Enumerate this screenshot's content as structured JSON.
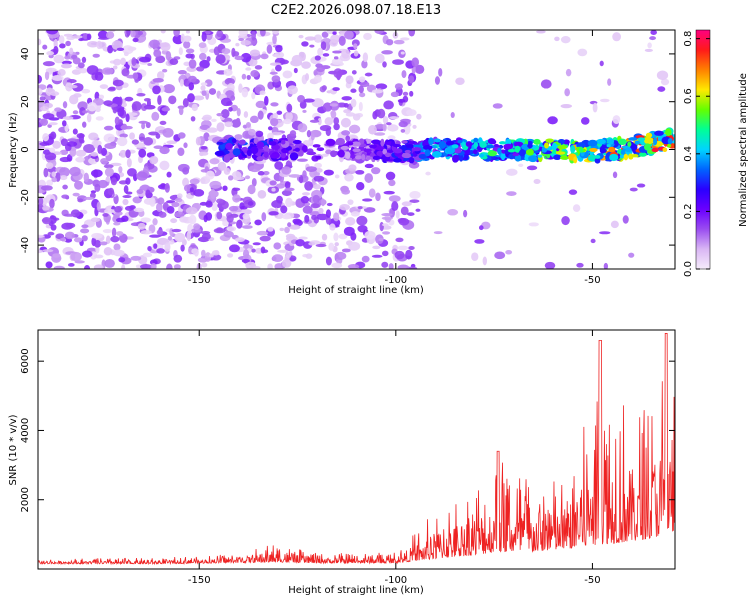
{
  "title": "C2E2.2026.098.07.18.E13",
  "chart_data": [
    {
      "type": "heatmap",
      "title": "C2E2.2026.098.07.18.E13",
      "xlabel": "Height of straight line (km)",
      "ylabel": "Frequency (Hz)",
      "xlim": [
        -191,
        -29
      ],
      "ylim": [
        -50,
        50
      ],
      "x_ticks": [
        -150,
        -100,
        -50
      ],
      "y_ticks": [
        -40,
        -20,
        0,
        20,
        40
      ],
      "colorbar": {
        "label": "Normalized spectral amplitude",
        "range": [
          0.0,
          0.83
        ],
        "ticks": [
          0.0,
          0.2,
          0.4,
          0.6,
          0.8
        ],
        "colormap": [
          "#f6ecfb",
          "#d9b6f4",
          "#9a4df0",
          "#6a00ff",
          "#2a00ff",
          "#0064ff",
          "#00d4ff",
          "#00ff96",
          "#64ff00",
          "#ffe800",
          "#ff8000",
          "#ff1a1a",
          "#ff0080"
        ]
      },
      "signal_track": {
        "description_points": [
          {
            "x": -140,
            "freq": 0,
            "amp": 0.35
          },
          {
            "x": -130,
            "freq": 0,
            "amp": 0.3
          },
          {
            "x": -110,
            "freq": 0,
            "amp": 0.2
          },
          {
            "x": -100,
            "freq": -1,
            "amp": 0.3
          },
          {
            "x": -90,
            "freq": 0,
            "amp": 0.45
          },
          {
            "x": -80,
            "freq": 0,
            "amp": 0.5
          },
          {
            "x": -70,
            "freq": 0,
            "amp": 0.55
          },
          {
            "x": -60,
            "freq": 0,
            "amp": 0.62
          },
          {
            "x": -50,
            "freq": -1,
            "amp": 0.7
          },
          {
            "x": -40,
            "freq": 1,
            "amp": 0.78
          },
          {
            "x": -30,
            "freq": 4,
            "amp": 0.8
          }
        ]
      }
    },
    {
      "type": "line",
      "xlabel": "Height of straight line (km)",
      "ylabel": "SNR (10 * v/v)",
      "xlim": [
        -191,
        -29
      ],
      "ylim": [
        0,
        6900
      ],
      "x_ticks": [
        -150,
        -100,
        -50
      ],
      "y_ticks": [
        2000,
        4000,
        6000
      ],
      "series": [
        {
          "name": "SNR",
          "color": "#ee2222",
          "envelope": [
            {
              "x": -191,
              "base": 150,
              "peak": 300
            },
            {
              "x": -160,
              "base": 150,
              "peak": 320
            },
            {
              "x": -140,
              "base": 180,
              "peak": 450
            },
            {
              "x": -131,
              "base": 200,
              "peak": 750
            },
            {
              "x": -120,
              "base": 170,
              "peak": 450
            },
            {
              "x": -100,
              "base": 170,
              "peak": 500
            },
            {
              "x": -90,
              "base": 300,
              "peak": 1700
            },
            {
              "x": -80,
              "base": 400,
              "peak": 2600
            },
            {
              "x": -74,
              "base": 500,
              "peak": 3400
            },
            {
              "x": -65,
              "base": 500,
              "peak": 2700
            },
            {
              "x": -55,
              "base": 600,
              "peak": 2600
            },
            {
              "x": -48,
              "base": 700,
              "peak": 6600
            },
            {
              "x": -40,
              "base": 800,
              "peak": 4600
            },
            {
              "x": -35,
              "base": 900,
              "peak": 5100
            },
            {
              "x": -31,
              "base": 1000,
              "peak": 6800
            },
            {
              "x": -29,
              "base": 1000,
              "peak": 5400
            }
          ]
        }
      ]
    }
  ]
}
